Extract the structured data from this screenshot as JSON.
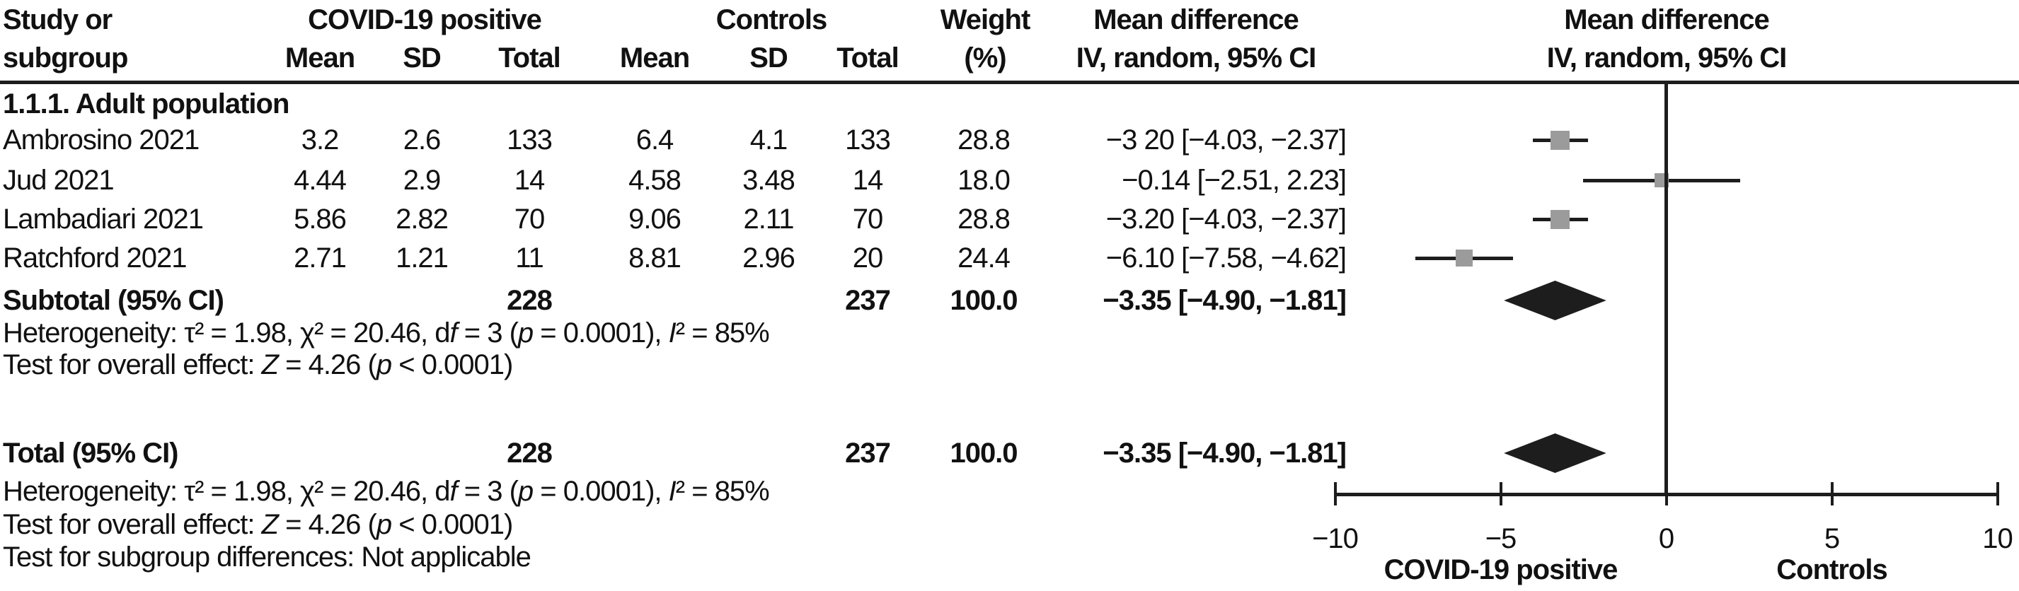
{
  "header": {
    "study_line1": "Study or",
    "study_line2": "subgroup",
    "group_experimental": "COVID-19 positive",
    "group_control": "Controls",
    "col_mean": "Mean",
    "col_sd": "SD",
    "col_total": "Total",
    "weight_line1": "Weight",
    "weight_line2": "(%)",
    "md_line1": "Mean difference",
    "md_line2": "IV, random, 95% CI",
    "plot_md_line1": "Mean difference",
    "plot_md_line2": "IV, random, 95% CI"
  },
  "section_label": "1.1.1. Adult population",
  "chart_data": {
    "type": "forest",
    "title": "Mean difference, IV, random, 95% CI — COVID-19 positive vs Controls",
    "x_axis": {
      "min": -10,
      "max": 10,
      "ticks": [
        {
          "value": -10,
          "label": "−10"
        },
        {
          "value": -5,
          "label": "−5"
        },
        {
          "value": 0,
          "label": "0"
        },
        {
          "value": 5,
          "label": "5"
        },
        {
          "value": 10,
          "label": "10"
        }
      ],
      "label_left": "COVID-19 positive",
      "label_right": "Controls"
    },
    "studies": [
      {
        "name": "Ambrosino 2021",
        "exp_mean": "3.2",
        "exp_sd": "2.6",
        "exp_total": "133",
        "ctrl_mean": "6.4",
        "ctrl_sd": "4.1",
        "ctrl_total": "133",
        "weight": "28.8",
        "weight_num": 28.8,
        "md_text": "−3 20 [−4.03, −2.37]",
        "md": -3.2,
        "ci_low": -4.03,
        "ci_high": -2.37
      },
      {
        "name": "Jud 2021",
        "exp_mean": "4.44",
        "exp_sd": "2.9",
        "exp_total": "14",
        "ctrl_mean": "4.58",
        "ctrl_sd": "3.48",
        "ctrl_total": "14",
        "weight": "18.0",
        "weight_num": 18.0,
        "md_text": "−0.14 [−2.51, 2.23]",
        "md": -0.14,
        "ci_low": -2.51,
        "ci_high": 2.23
      },
      {
        "name": "Lambadiari 2021",
        "exp_mean": "5.86",
        "exp_sd": "2.82",
        "exp_total": "70",
        "ctrl_mean": "9.06",
        "ctrl_sd": "2.11",
        "ctrl_total": "70",
        "weight": "28.8",
        "weight_num": 28.8,
        "md_text": "−3.20 [−4.03, −2.37]",
        "md": -3.2,
        "ci_low": -4.03,
        "ci_high": -2.37
      },
      {
        "name": "Ratchford 2021",
        "exp_mean": "2.71",
        "exp_sd": "1.21",
        "exp_total": "11",
        "ctrl_mean": "8.81",
        "ctrl_sd": "2.96",
        "ctrl_total": "20",
        "weight": "24.4",
        "weight_num": 24.4,
        "md_text": "−6.10 [−7.58, −4.62]",
        "md": -6.1,
        "ci_low": -7.58,
        "ci_high": -4.62
      }
    ],
    "subtotal": {
      "label": "Subtotal (95% CI)",
      "exp_total": "228",
      "ctrl_total": "237",
      "weight": "100.0",
      "md_text": "−3.35 [−4.90, −1.81]",
      "md": -3.35,
      "ci_low": -4.9,
      "ci_high": -1.81
    },
    "total": {
      "label": "Total (95% CI)",
      "exp_total": "228",
      "ctrl_total": "237",
      "weight": "100.0",
      "md_text": "−3.35 [−4.90, −1.81]",
      "md": -3.35,
      "ci_low": -4.9,
      "ci_high": -1.81
    },
    "colors": {
      "square": "#9b9b9b",
      "line": "#1d1d1d",
      "diamond": "#1d1d1d"
    }
  },
  "stats": {
    "subtotal_heterogeneity": "Heterogeneity: τ² = 1.98, χ² = 20.46, d<i>f</i> = 3 (<i>p</i> = 0.0001), <i>I</i>² = 85%",
    "subtotal_overall": "Test for overall effect: <i>Z</i> = 4.26 (<i>p</i> &lt; 0.0001)",
    "total_heterogeneity": "Heterogeneity: τ² = 1.98, χ² = 20.46, d<i>f</i> = 3 (<i>p</i> = 0.0001), <i>I</i>² = 85%",
    "total_overall": "Test for overall effect: <i>Z</i> = 4.26 (<i>p</i> &lt; 0.0001)",
    "subgroup_diff": "Test for subgroup differences: Not applicable"
  }
}
